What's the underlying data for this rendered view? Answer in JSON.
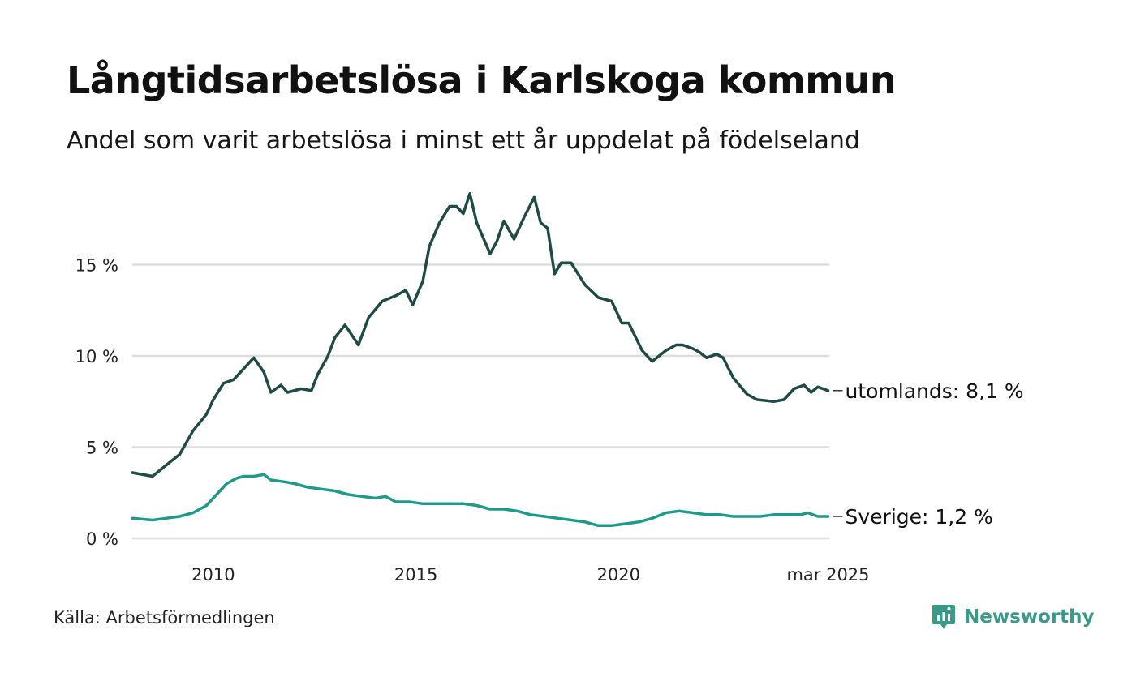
{
  "title": "Långtidsarbetslösa i Karlskoga kommun",
  "subtitle": "Andel som varit arbetslösa i minst ett år uppdelat på födelseland",
  "source": "Källa: Arbetsförmedlingen",
  "brand": "Newsworthy",
  "brand_icon": "chart-bubble-icon",
  "colors": {
    "utomlands": "#1f4a45",
    "sverige": "#1f9a88",
    "grid": "#dddddd",
    "brand": "#3a9a8a"
  },
  "chart_data": {
    "type": "line",
    "title": "Långtidsarbetslösa i Karlskoga kommun",
    "subtitle": "Andel som varit arbetslösa i minst ett år uppdelat på födelseland",
    "x_unit": "year (decimal)",
    "xlim": [
      2008.0,
      2025.2
    ],
    "ylim": [
      0,
      19
    ],
    "y_ticks": [
      0,
      5,
      10,
      15
    ],
    "y_tick_labels": [
      "0 %",
      "5 %",
      "10 %",
      "15 %"
    ],
    "x_ticks": [
      2010,
      2015,
      2020,
      2025.17
    ],
    "x_tick_labels": [
      "2010",
      "2015",
      "2020",
      "mar 2025"
    ],
    "grid": "horizontal",
    "series": [
      {
        "key": "utomlands",
        "name": "utomlands",
        "end_label": "utomlands: 8,1 %",
        "points": [
          [
            2008.0,
            3.6
          ],
          [
            2008.5,
            3.4
          ],
          [
            2008.83,
            4.0
          ],
          [
            2009.17,
            4.6
          ],
          [
            2009.5,
            5.9
          ],
          [
            2009.83,
            6.8
          ],
          [
            2010.0,
            7.6
          ],
          [
            2010.25,
            8.5
          ],
          [
            2010.5,
            8.7
          ],
          [
            2010.75,
            9.3
          ],
          [
            2011.0,
            9.9
          ],
          [
            2011.25,
            9.1
          ],
          [
            2011.42,
            8.0
          ],
          [
            2011.67,
            8.4
          ],
          [
            2011.83,
            8.0
          ],
          [
            2012.17,
            8.2
          ],
          [
            2012.42,
            8.1
          ],
          [
            2012.58,
            9.0
          ],
          [
            2012.83,
            10.0
          ],
          [
            2013.0,
            11.0
          ],
          [
            2013.25,
            11.7
          ],
          [
            2013.58,
            10.6
          ],
          [
            2013.83,
            12.1
          ],
          [
            2014.17,
            13.0
          ],
          [
            2014.5,
            13.3
          ],
          [
            2014.75,
            13.6
          ],
          [
            2014.92,
            12.8
          ],
          [
            2015.17,
            14.1
          ],
          [
            2015.33,
            16.0
          ],
          [
            2015.58,
            17.3
          ],
          [
            2015.83,
            18.2
          ],
          [
            2016.0,
            18.2
          ],
          [
            2016.17,
            17.8
          ],
          [
            2016.33,
            18.9
          ],
          [
            2016.5,
            17.3
          ],
          [
            2016.83,
            15.6
          ],
          [
            2017.0,
            16.3
          ],
          [
            2017.17,
            17.4
          ],
          [
            2017.42,
            16.4
          ],
          [
            2017.67,
            17.6
          ],
          [
            2017.92,
            18.7
          ],
          [
            2018.08,
            17.3
          ],
          [
            2018.25,
            17.0
          ],
          [
            2018.42,
            14.5
          ],
          [
            2018.58,
            15.1
          ],
          [
            2018.83,
            15.1
          ],
          [
            2019.17,
            13.9
          ],
          [
            2019.5,
            13.2
          ],
          [
            2019.83,
            13.0
          ],
          [
            2020.08,
            11.8
          ],
          [
            2020.25,
            11.8
          ],
          [
            2020.58,
            10.3
          ],
          [
            2020.83,
            9.7
          ],
          [
            2021.17,
            10.3
          ],
          [
            2021.42,
            10.6
          ],
          [
            2021.58,
            10.6
          ],
          [
            2021.83,
            10.4
          ],
          [
            2022.0,
            10.2
          ],
          [
            2022.17,
            9.9
          ],
          [
            2022.42,
            10.1
          ],
          [
            2022.58,
            9.9
          ],
          [
            2022.83,
            8.8
          ],
          [
            2023.17,
            7.9
          ],
          [
            2023.42,
            7.6
          ],
          [
            2023.83,
            7.5
          ],
          [
            2024.08,
            7.6
          ],
          [
            2024.33,
            8.2
          ],
          [
            2024.58,
            8.4
          ],
          [
            2024.75,
            8.0
          ],
          [
            2024.92,
            8.3
          ],
          [
            2025.17,
            8.1
          ]
        ]
      },
      {
        "key": "sverige",
        "name": "Sverige",
        "end_label": "Sverige: 1,2 %",
        "points": [
          [
            2008.0,
            1.1
          ],
          [
            2008.5,
            1.0
          ],
          [
            2008.83,
            1.1
          ],
          [
            2009.17,
            1.2
          ],
          [
            2009.5,
            1.4
          ],
          [
            2009.83,
            1.8
          ],
          [
            2010.08,
            2.4
          ],
          [
            2010.33,
            3.0
          ],
          [
            2010.58,
            3.3
          ],
          [
            2010.75,
            3.4
          ],
          [
            2011.0,
            3.4
          ],
          [
            2011.25,
            3.5
          ],
          [
            2011.42,
            3.2
          ],
          [
            2011.75,
            3.1
          ],
          [
            2012.0,
            3.0
          ],
          [
            2012.33,
            2.8
          ],
          [
            2012.67,
            2.7
          ],
          [
            2013.0,
            2.6
          ],
          [
            2013.33,
            2.4
          ],
          [
            2013.67,
            2.3
          ],
          [
            2014.0,
            2.2
          ],
          [
            2014.25,
            2.3
          ],
          [
            2014.5,
            2.0
          ],
          [
            2014.83,
            2.0
          ],
          [
            2015.17,
            1.9
          ],
          [
            2015.5,
            1.9
          ],
          [
            2015.83,
            1.9
          ],
          [
            2016.17,
            1.9
          ],
          [
            2016.5,
            1.8
          ],
          [
            2016.83,
            1.6
          ],
          [
            2017.17,
            1.6
          ],
          [
            2017.5,
            1.5
          ],
          [
            2017.83,
            1.3
          ],
          [
            2018.17,
            1.2
          ],
          [
            2018.5,
            1.1
          ],
          [
            2018.83,
            1.0
          ],
          [
            2019.17,
            0.9
          ],
          [
            2019.5,
            0.7
          ],
          [
            2019.83,
            0.7
          ],
          [
            2020.17,
            0.8
          ],
          [
            2020.5,
            0.9
          ],
          [
            2020.83,
            1.1
          ],
          [
            2021.17,
            1.4
          ],
          [
            2021.5,
            1.5
          ],
          [
            2021.83,
            1.4
          ],
          [
            2022.17,
            1.3
          ],
          [
            2022.5,
            1.3
          ],
          [
            2022.83,
            1.2
          ],
          [
            2023.17,
            1.2
          ],
          [
            2023.5,
            1.2
          ],
          [
            2023.83,
            1.3
          ],
          [
            2024.17,
            1.3
          ],
          [
            2024.5,
            1.3
          ],
          [
            2024.67,
            1.4
          ],
          [
            2024.92,
            1.2
          ],
          [
            2025.17,
            1.2
          ]
        ]
      }
    ]
  }
}
